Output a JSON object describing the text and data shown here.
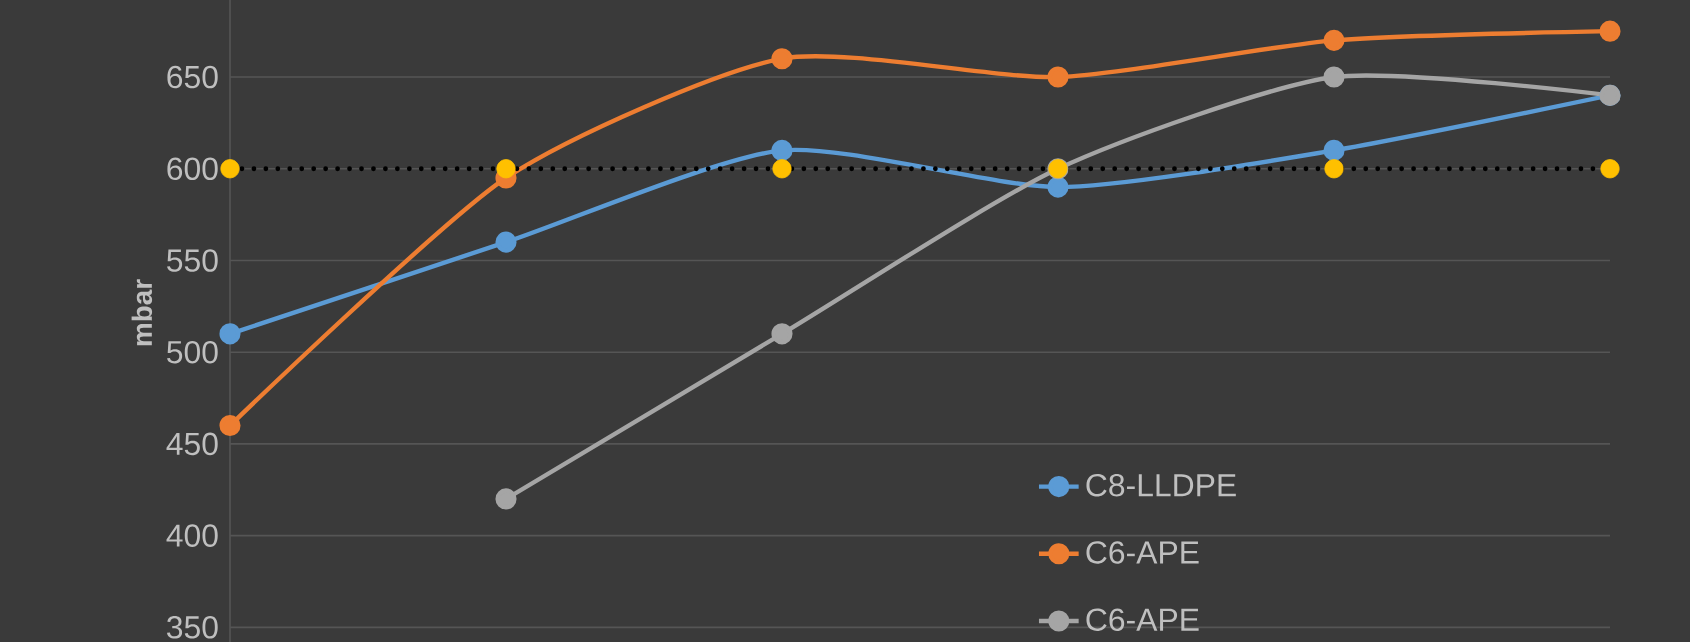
{
  "chart_data": {
    "type": "line",
    "ylabel": "mbar",
    "categories": [
      null,
      null,
      null,
      null,
      null,
      null
    ],
    "series": [
      {
        "name": "C8-LLDPE",
        "color": "#5b9bd5",
        "values": [
          510,
          560,
          610,
          590,
          610,
          640
        ]
      },
      {
        "name": "C6-APE",
        "color": "#ed7d31",
        "values": [
          460,
          595,
          660,
          650,
          670,
          675
        ]
      },
      {
        "name": "C6-APE",
        "color": "#a5a5a5",
        "values": [
          null,
          420,
          510,
          600,
          650,
          640
        ]
      },
      {
        "type": "scatter",
        "color": "#ffc000",
        "values": [
          600,
          600,
          600,
          600,
          600,
          600
        ]
      }
    ],
    "ref_lines": [
      {
        "axis": "y",
        "value": 600,
        "color": "#000000",
        "line_style": "dotted"
      }
    ],
    "ylim": [
      342,
      692
    ],
    "yticks": [
      350,
      400,
      450,
      500,
      550,
      600,
      650
    ],
    "grid": "y",
    "legend": "bottom",
    "marker": "circle",
    "line_style": "solid"
  }
}
